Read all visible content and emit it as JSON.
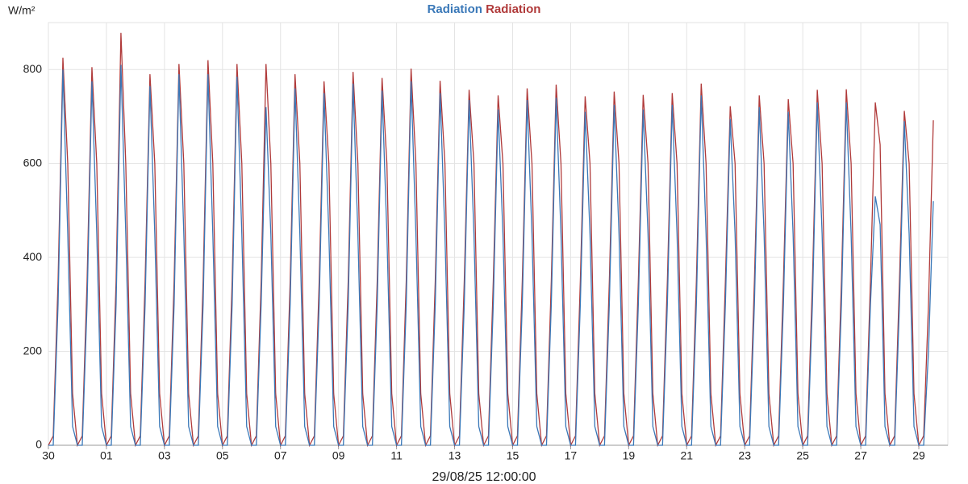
{
  "chart_data": {
    "type": "line",
    "y_label": "W/m²",
    "x_label": "29/08/25 12:00:00",
    "x": [
      0,
      4,
      8,
      12,
      16,
      20,
      24,
      28,
      32,
      36,
      40,
      44,
      48,
      52,
      56,
      60,
      64,
      68,
      72,
      76,
      80,
      84,
      88,
      92,
      96,
      100,
      104,
      108,
      112,
      116,
      120,
      124,
      128,
      132,
      136,
      140,
      144,
      148,
      152,
      156,
      160,
      164,
      168,
      172,
      176,
      180,
      184,
      188,
      192,
      196,
      200,
      204,
      208,
      212,
      216,
      220,
      224,
      228,
      232,
      236,
      240,
      244,
      248,
      252,
      256,
      260,
      264,
      268,
      272,
      276,
      280,
      284,
      288,
      292,
      296,
      300,
      304,
      308,
      312,
      316,
      320,
      324,
      328,
      332,
      336,
      340,
      344,
      348,
      352,
      356,
      360,
      364,
      368,
      372,
      376,
      380,
      384,
      388,
      392,
      396,
      400,
      404,
      408,
      412,
      416,
      420,
      424,
      428,
      432,
      436,
      440,
      444,
      448,
      452,
      456,
      460,
      464,
      468,
      472,
      476,
      480,
      484,
      488,
      492,
      496,
      500,
      504,
      508,
      512,
      516,
      520,
      524,
      528,
      532,
      536,
      540,
      544,
      548,
      552,
      556,
      560,
      564,
      568,
      572,
      576,
      580,
      584,
      588,
      592,
      596,
      600,
      604,
      608,
      612,
      616,
      620,
      624,
      628,
      632,
      636,
      640,
      644,
      648,
      652,
      656,
      660,
      664,
      668,
      672,
      676,
      680,
      684,
      688,
      692,
      696,
      700,
      704,
      708,
      712,
      716,
      720,
      724,
      728,
      732
    ],
    "series": [
      {
        "name": "Radiation",
        "color": "#3a78b8",
        "values": [
          0,
          0,
          300,
          800,
          450,
          40,
          0,
          0,
          300,
          775,
          450,
          40,
          0,
          0,
          300,
          810,
          450,
          40,
          0,
          0,
          300,
          765,
          450,
          40,
          0,
          0,
          300,
          790,
          450,
          40,
          0,
          0,
          300,
          790,
          450,
          40,
          0,
          0,
          300,
          785,
          450,
          40,
          0,
          0,
          300,
          720,
          450,
          40,
          0,
          0,
          300,
          760,
          450,
          40,
          0,
          0,
          300,
          750,
          450,
          40,
          0,
          0,
          300,
          770,
          450,
          40,
          0,
          0,
          300,
          755,
          450,
          40,
          0,
          0,
          300,
          775,
          450,
          40,
          0,
          0,
          300,
          750,
          450,
          40,
          0,
          0,
          300,
          735,
          450,
          40,
          0,
          0,
          300,
          715,
          450,
          40,
          0,
          0,
          300,
          735,
          450,
          40,
          0,
          0,
          300,
          740,
          450,
          40,
          0,
          0,
          300,
          710,
          450,
          40,
          0,
          0,
          300,
          725,
          450,
          40,
          0,
          0,
          300,
          715,
          450,
          40,
          0,
          0,
          300,
          725,
          450,
          40,
          0,
          0,
          300,
          745,
          450,
          40,
          0,
          0,
          300,
          695,
          450,
          40,
          0,
          0,
          300,
          720,
          450,
          40,
          0,
          0,
          300,
          710,
          450,
          40,
          0,
          0,
          300,
          730,
          450,
          40,
          0,
          0,
          300,
          730,
          450,
          40,
          0,
          0,
          300,
          530,
          470,
          40,
          0,
          0,
          300,
          690,
          450,
          40,
          0,
          0,
          200,
          520
        ]
      },
      {
        "name": "Radiation",
        "color": "#b03a3a",
        "values": [
          0,
          20,
          350,
          825,
          600,
          110,
          0,
          20,
          350,
          805,
          600,
          110,
          0,
          20,
          350,
          878,
          600,
          110,
          0,
          20,
          350,
          790,
          600,
          110,
          0,
          20,
          350,
          812,
          600,
          110,
          0,
          20,
          350,
          820,
          600,
          110,
          0,
          20,
          350,
          812,
          600,
          110,
          0,
          20,
          350,
          812,
          600,
          110,
          0,
          20,
          350,
          790,
          600,
          110,
          0,
          20,
          350,
          775,
          600,
          110,
          0,
          20,
          350,
          795,
          600,
          110,
          0,
          20,
          350,
          782,
          600,
          110,
          0,
          20,
          350,
          802,
          600,
          110,
          0,
          20,
          350,
          776,
          600,
          110,
          0,
          20,
          350,
          757,
          600,
          110,
          0,
          20,
          350,
          745,
          600,
          110,
          0,
          20,
          350,
          760,
          600,
          110,
          0,
          20,
          350,
          768,
          600,
          110,
          0,
          20,
          350,
          743,
          600,
          110,
          0,
          20,
          350,
          753,
          600,
          110,
          0,
          20,
          350,
          746,
          600,
          110,
          0,
          20,
          350,
          750,
          600,
          110,
          0,
          20,
          350,
          770,
          600,
          110,
          0,
          20,
          350,
          722,
          600,
          110,
          0,
          20,
          350,
          745,
          600,
          110,
          0,
          20,
          350,
          737,
          600,
          110,
          0,
          20,
          350,
          757,
          600,
          110,
          0,
          20,
          350,
          758,
          600,
          110,
          0,
          20,
          350,
          730,
          640,
          110,
          0,
          20,
          350,
          712,
          600,
          110,
          0,
          20,
          300,
          692
        ]
      }
    ],
    "xlim": [
      0,
      744
    ],
    "xticks": [
      {
        "value": 0,
        "label": "30"
      },
      {
        "value": 48,
        "label": "01"
      },
      {
        "value": 96,
        "label": "03"
      },
      {
        "value": 144,
        "label": "05"
      },
      {
        "value": 192,
        "label": "07"
      },
      {
        "value": 240,
        "label": "09"
      },
      {
        "value": 288,
        "label": "11"
      },
      {
        "value": 336,
        "label": "13"
      },
      {
        "value": 384,
        "label": "15"
      },
      {
        "value": 432,
        "label": "17"
      },
      {
        "value": 480,
        "label": "19"
      },
      {
        "value": 528,
        "label": "21"
      },
      {
        "value": 576,
        "label": "23"
      },
      {
        "value": 624,
        "label": "25"
      },
      {
        "value": 672,
        "label": "27"
      },
      {
        "value": 720,
        "label": "29"
      }
    ],
    "ylim": [
      0,
      900
    ],
    "yticks": [
      0,
      200,
      400,
      600,
      800
    ],
    "grid": true
  }
}
